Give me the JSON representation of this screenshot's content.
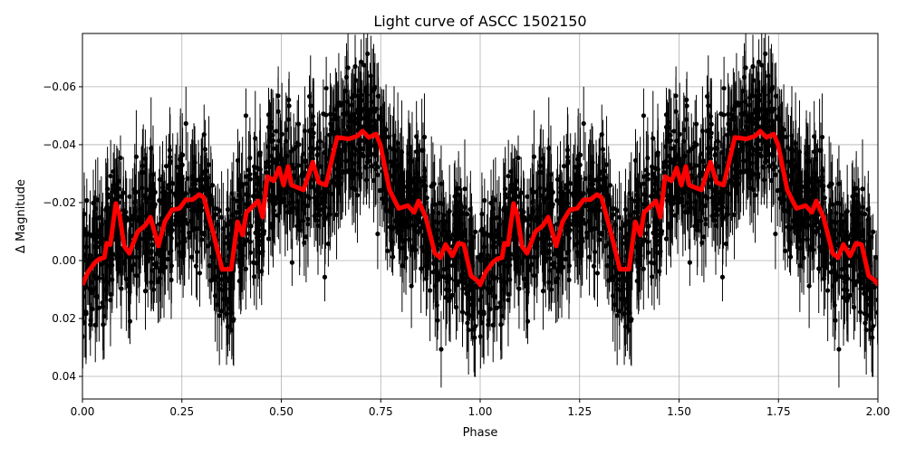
{
  "chart_data": {
    "type": "scatter",
    "title": "Light curve of ASCC 1502150",
    "xlabel": "Phase",
    "ylabel": "Δ Magnitude",
    "xlim": [
      0,
      2
    ],
    "ylim": [
      0.0478,
      -0.0784
    ],
    "y_inverted": true,
    "grid": true,
    "x_ticks": [
      0,
      0.25,
      0.5,
      0.75,
      1.0,
      1.25,
      1.5,
      1.75,
      2.0
    ],
    "x_tick_labels": [
      "0.00",
      "0.25",
      "0.50",
      "0.75",
      "1.00",
      "1.25",
      "1.50",
      "1.75",
      "2.00"
    ],
    "y_ticks": [
      -0.06,
      -0.04,
      -0.02,
      0.0,
      0.02,
      0.04
    ],
    "y_tick_labels": [
      "−0.06",
      "−0.04",
      "−0.02",
      "0.00",
      "0.02",
      "0.04"
    ],
    "observations": {
      "style": "errorbar",
      "marker": "circle",
      "color": "#000000"
    },
    "model": {
      "style": "line",
      "color": "#ff0000",
      "x": [
        0.0,
        0.014,
        0.032,
        0.043,
        0.055,
        0.061,
        0.07,
        0.084,
        0.093,
        0.105,
        0.118,
        0.139,
        0.157,
        0.171,
        0.191,
        0.207,
        0.225,
        0.244,
        0.26,
        0.276,
        0.294,
        0.305,
        0.328,
        0.351,
        0.374,
        0.39,
        0.403,
        0.412,
        0.43,
        0.442,
        0.453,
        0.465,
        0.481,
        0.494,
        0.506,
        0.517,
        0.526,
        0.556,
        0.579,
        0.594,
        0.612,
        0.64,
        0.67,
        0.692,
        0.704,
        0.72,
        0.738,
        0.749,
        0.772,
        0.795,
        0.818,
        0.834,
        0.845,
        0.863,
        0.886,
        0.9,
        0.913,
        0.93,
        0.945,
        0.959,
        0.977,
        0.995,
        1.0,
        1.014,
        1.032,
        1.043,
        1.055,
        1.061,
        1.07,
        1.084,
        1.093,
        1.105,
        1.118,
        1.139,
        1.157,
        1.171,
        1.191,
        1.207,
        1.225,
        1.244,
        1.26,
        1.276,
        1.294,
        1.305,
        1.328,
        1.351,
        1.374,
        1.39,
        1.403,
        1.412,
        1.43,
        1.442,
        1.453,
        1.465,
        1.481,
        1.494,
        1.506,
        1.517,
        1.526,
        1.556,
        1.579,
        1.594,
        1.612,
        1.64,
        1.67,
        1.692,
        1.704,
        1.72,
        1.738,
        1.749,
        1.772,
        1.795,
        1.818,
        1.834,
        1.845,
        1.863,
        1.886,
        1.9,
        1.913,
        1.93,
        1.945,
        1.959,
        1.977,
        1.995,
        2.0
      ],
      "y": [
        0.0084,
        0.004,
        0.0006,
        -0.0006,
        -0.001,
        -0.006,
        -0.0055,
        -0.0197,
        -0.016,
        -0.005,
        -0.0025,
        -0.01,
        -0.012,
        -0.015,
        -0.005,
        -0.0134,
        -0.0175,
        -0.018,
        -0.021,
        -0.021,
        -0.0228,
        -0.0218,
        -0.01,
        0.003,
        0.003,
        -0.0134,
        -0.0088,
        -0.0166,
        -0.019,
        -0.0206,
        -0.015,
        -0.029,
        -0.0275,
        -0.032,
        -0.026,
        -0.0325,
        -0.026,
        -0.0244,
        -0.034,
        -0.027,
        -0.026,
        -0.0425,
        -0.042,
        -0.043,
        -0.0447,
        -0.0425,
        -0.0437,
        -0.04,
        -0.0244,
        -0.018,
        -0.019,
        -0.0166,
        -0.0206,
        -0.015,
        -0.0025,
        -0.001,
        -0.0056,
        -0.0016,
        -0.006,
        -0.0055,
        0.0053,
        0.0072,
        0.0084,
        0.004,
        0.0006,
        -0.0006,
        -0.001,
        -0.006,
        -0.0055,
        -0.0197,
        -0.016,
        -0.005,
        -0.0025,
        -0.01,
        -0.012,
        -0.015,
        -0.005,
        -0.0134,
        -0.0175,
        -0.018,
        -0.021,
        -0.021,
        -0.0228,
        -0.0218,
        -0.01,
        0.003,
        0.003,
        -0.0134,
        -0.0088,
        -0.0166,
        -0.019,
        -0.0206,
        -0.015,
        -0.029,
        -0.0275,
        -0.032,
        -0.026,
        -0.0325,
        -0.026,
        -0.0244,
        -0.034,
        -0.027,
        -0.026,
        -0.0425,
        -0.042,
        -0.043,
        -0.0447,
        -0.0425,
        -0.0437,
        -0.04,
        -0.0244,
        -0.018,
        -0.019,
        -0.0166,
        -0.0206,
        -0.015,
        -0.0025,
        -0.001,
        -0.0056,
        -0.0016,
        -0.006,
        -0.0055,
        0.0053,
        0.0072,
        0.0084
      ]
    }
  }
}
